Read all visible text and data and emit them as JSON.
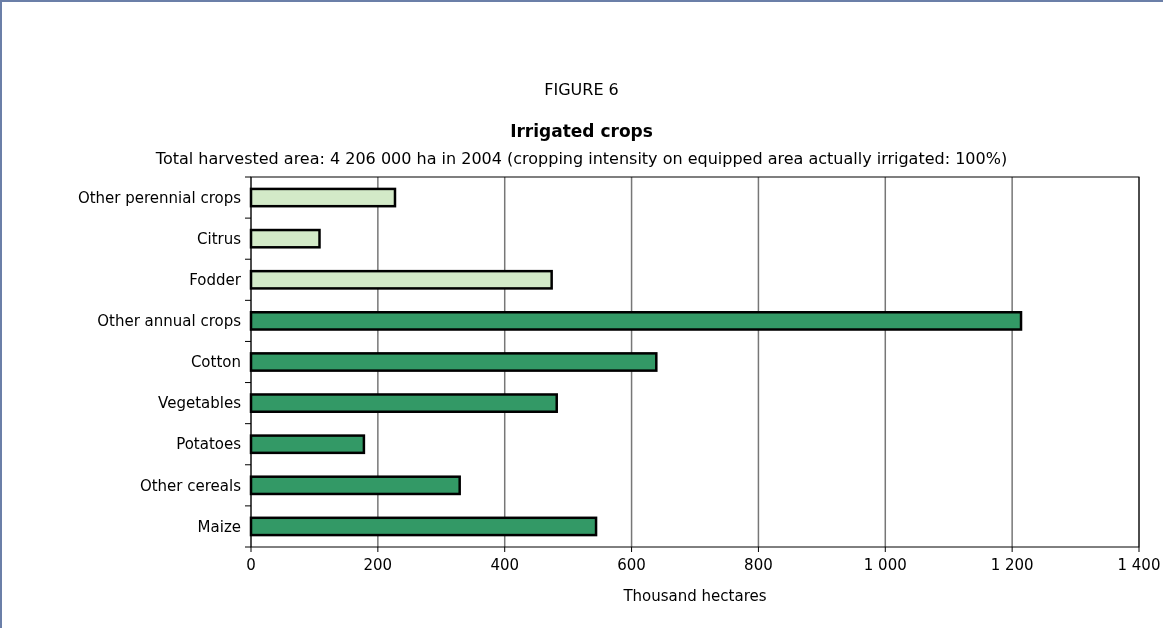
{
  "chart_data": {
    "type": "bar",
    "orientation": "horizontal",
    "title": "Irrigated crops",
    "subtitle": "Total harvested area: 4 206 000 ha in 2004 (cropping intensity on equipped area actually irrigated: 100%)",
    "annotations": [
      "FIGURE 6"
    ],
    "xlabel": "Thousand hectares",
    "categories": [
      "Other perennial crops",
      "Citrus",
      "Fodder",
      "Other annual crops",
      "Cotton",
      "Vegetables",
      "Potatoes",
      "Other cereals",
      "Maize"
    ],
    "values": [
      227,
      108,
      474,
      1214,
      639,
      482,
      178,
      329,
      544
    ],
    "colors": [
      "#d3eac8",
      "#d3eac8",
      "#d3eac8",
      "#339966",
      "#339966",
      "#339966",
      "#339966",
      "#339966",
      "#339966"
    ],
    "xlim": [
      0,
      1400
    ],
    "xticks": [
      0,
      200,
      400,
      600,
      800,
      {
        "value": 1000,
        "label": "1 000"
      },
      {
        "value": 1200,
        "label": "1 200"
      },
      {
        "value": 1400,
        "label": "1 400"
      }
    ],
    "grid": "x"
  }
}
